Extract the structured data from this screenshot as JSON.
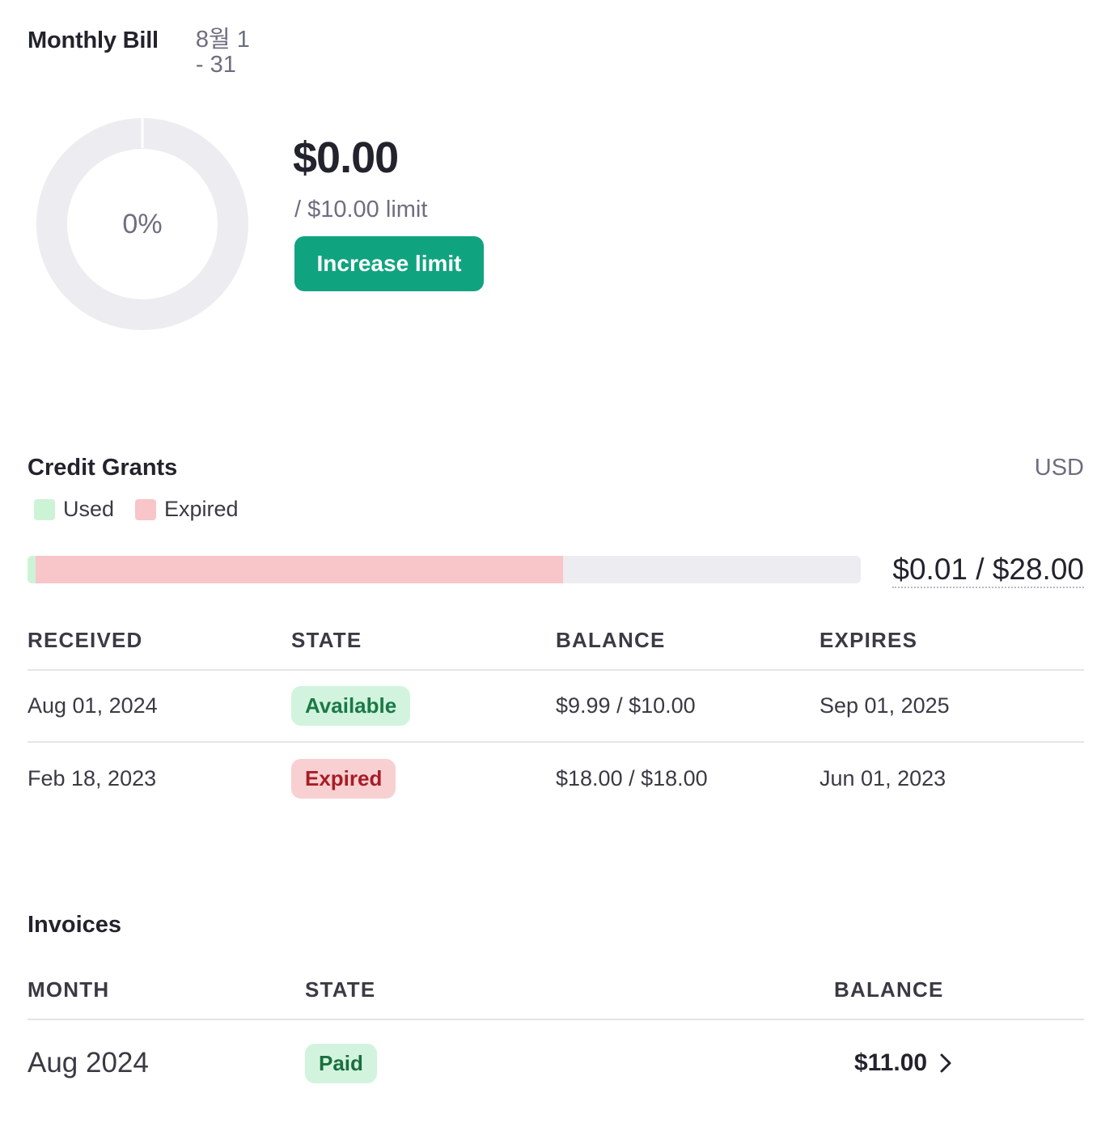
{
  "monthly_bill": {
    "title": "Monthly Bill",
    "period": "8월 1 - 31",
    "usage_percent": 0,
    "usage_label": "0%",
    "amount": "$0.00",
    "limit_text": "/ $10.00 limit",
    "increase_button": "Increase limit"
  },
  "credit_grants": {
    "title": "Credit Grants",
    "currency": "USD",
    "legend": [
      {
        "label": "Used",
        "color": "#cdf3d7"
      },
      {
        "label": "Expired",
        "color": "#f8c5c8"
      }
    ],
    "progress": {
      "used_fraction": 0.0004,
      "expired_fraction": 0.643,
      "used_color": "#cdf3d7",
      "expired_color": "#f8c5c8",
      "track_color": "#ececf1"
    },
    "total_text": "$0.01 / $28.00",
    "columns": [
      "RECEIVED",
      "STATE",
      "BALANCE",
      "EXPIRES"
    ],
    "rows": [
      {
        "received": "Aug 01, 2024",
        "state": "Available",
        "balance": "$9.99 / $10.00",
        "expires": "Sep 01, 2025"
      },
      {
        "received": "Feb 18, 2023",
        "state": "Expired",
        "balance": "$18.00 / $18.00",
        "expires": "Jun 01, 2023"
      }
    ]
  },
  "invoices": {
    "title": "Invoices",
    "columns": [
      "MONTH",
      "STATE",
      "BALANCE"
    ],
    "rows": [
      {
        "month": "Aug 2024",
        "state": "Paid",
        "balance": "$11.00"
      }
    ]
  },
  "colors": {
    "accent": "#10a37f"
  }
}
